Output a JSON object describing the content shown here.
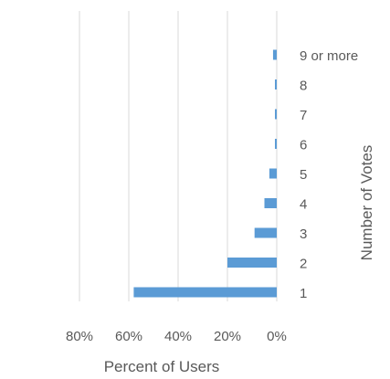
{
  "chart_data": {
    "type": "bar",
    "orientation": "horizontal",
    "x_direction": "reversed",
    "categories": [
      "1",
      "2",
      "3",
      "4",
      "5",
      "6",
      "7",
      "8",
      "9 or more"
    ],
    "values": [
      58,
      20,
      9,
      5,
      3,
      0.5,
      0.5,
      0.5,
      1.5
    ],
    "xlim": [
      0,
      80
    ],
    "x_ticks": [
      "0%",
      "20%",
      "40%",
      "60%",
      "80%"
    ],
    "xlabel": "Percent of Users",
    "ylabel": "Number  of Votes",
    "bar_color": "#5B9BD5",
    "grid": true
  }
}
